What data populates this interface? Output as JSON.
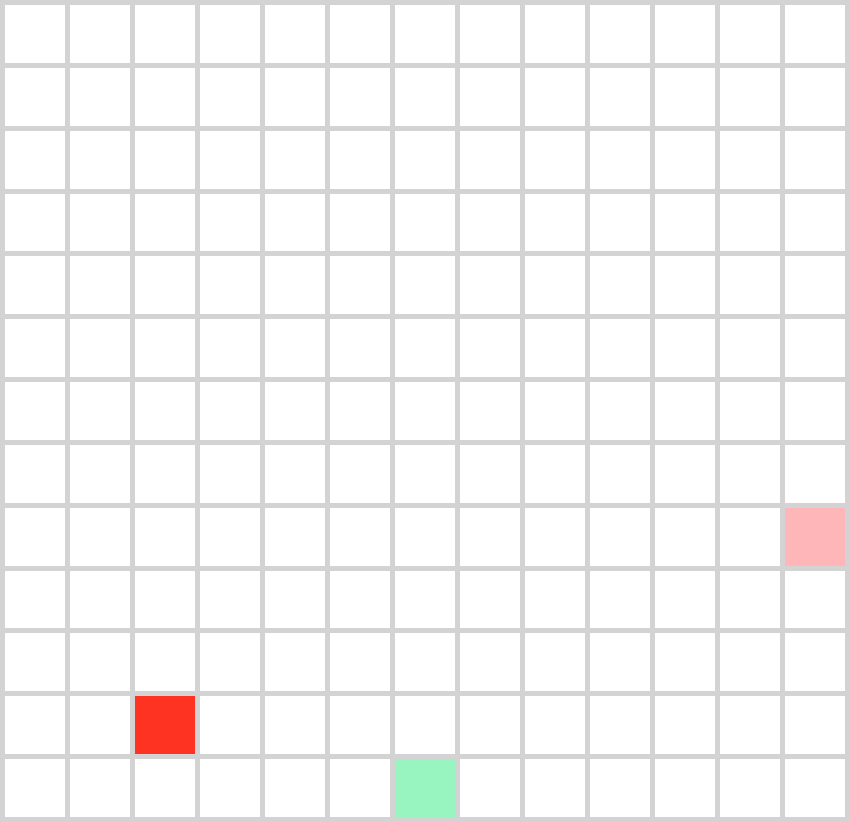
{
  "grid": {
    "rows": 13,
    "cols": 13,
    "background_color": "#ffffff",
    "line_color": "#d3d3d3"
  },
  "cells": [
    {
      "name": "red-cell",
      "row": 11,
      "col": 2,
      "color": "#ff3322"
    },
    {
      "name": "pink-cell",
      "row": 8,
      "col": 12,
      "color": "#ffb6b9"
    },
    {
      "name": "green-cell",
      "row": 12,
      "col": 6,
      "color": "#98f5c0"
    }
  ]
}
